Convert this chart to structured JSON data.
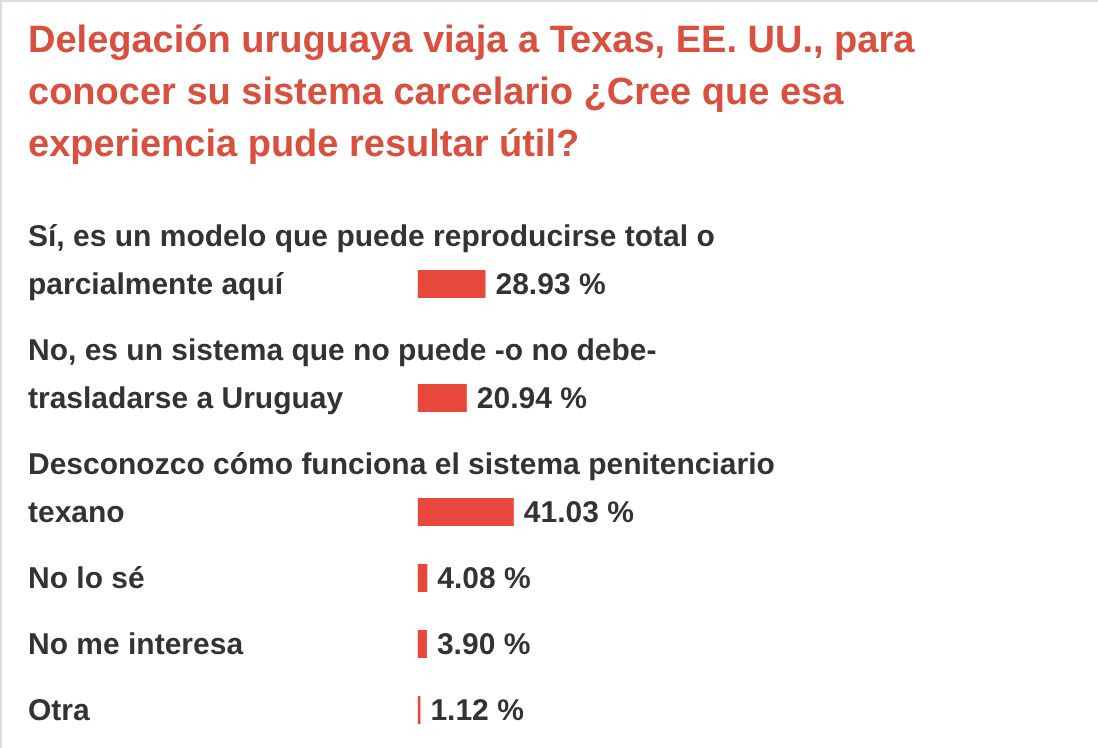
{
  "chart_data": {
    "type": "bar",
    "orientation": "horizontal",
    "title": "Delegación uruguaya viaja a Texas, EE. UU., para conocer su sistema carcelario ¿Cree que esa experiencia pude resultar útil?",
    "categories": [
      "Sí, es un modelo que puede reproducirse total o parcialmente aquí",
      "No, es un sistema que no puede -o no debe- trasladarse a Uruguay",
      "Desconozco cómo funciona el sistema penitenciario texano",
      "No lo sé",
      "No me interesa",
      "Otra"
    ],
    "values": [
      28.93,
      20.94,
      41.03,
      4.08,
      3.9,
      1.12
    ],
    "value_labels": [
      "28.93 %",
      "20.94 %",
      "41.03 %",
      "4.08 %",
      "3.90 %",
      "1.12 %"
    ],
    "color": "#e8473c"
  }
}
